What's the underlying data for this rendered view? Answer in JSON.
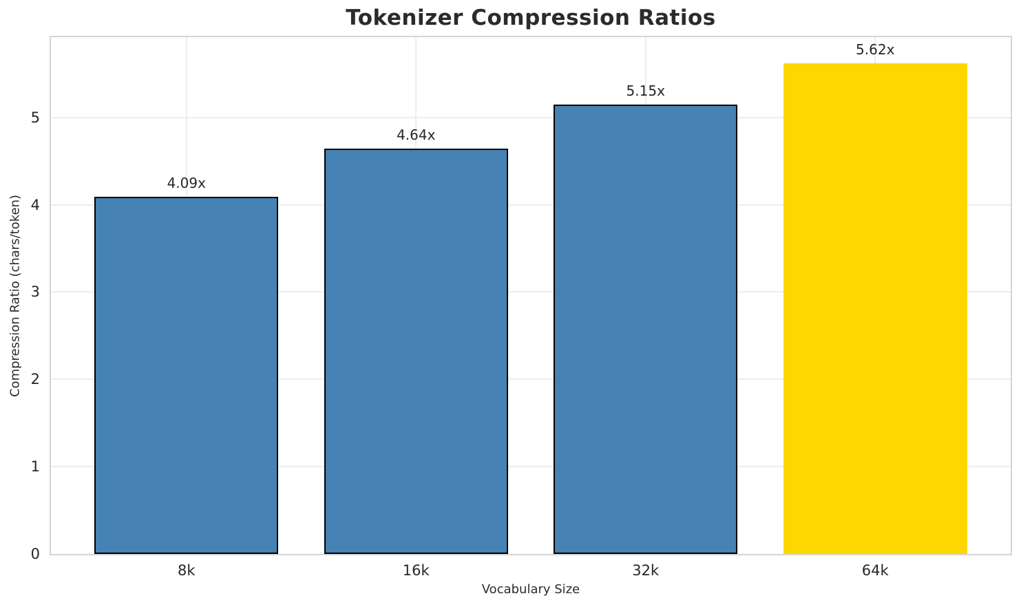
{
  "chart_data": {
    "type": "bar",
    "title": "Tokenizer Compression Ratios",
    "xlabel": "Vocabulary Size",
    "ylabel": "Compression Ratio (chars/token)",
    "categories": [
      "8k",
      "16k",
      "32k",
      "64k"
    ],
    "values": [
      4.09,
      4.64,
      5.15,
      5.62
    ],
    "bar_labels": [
      "4.09x",
      "4.64x",
      "5.15x",
      "5.62x"
    ],
    "bar_colors": [
      "#4682B4",
      "#4682B4",
      "#4682B4",
      "#FFD700"
    ],
    "bar_edge_widths": [
      2.5,
      2.5,
      2.5,
      0
    ],
    "edge_color": "#000000",
    "highlighted_category": "64k",
    "yticks": [
      0,
      1,
      2,
      3,
      4,
      5
    ],
    "ylim": [
      0,
      5.92
    ],
    "xlim": [
      -0.59,
      3.59
    ],
    "bar_width": 0.8,
    "grid": true,
    "legend": null,
    "grid_color": "#ededed",
    "spine_color": "#d4d4d4",
    "text_color": "#262626",
    "background_color": "#ffffff"
  }
}
